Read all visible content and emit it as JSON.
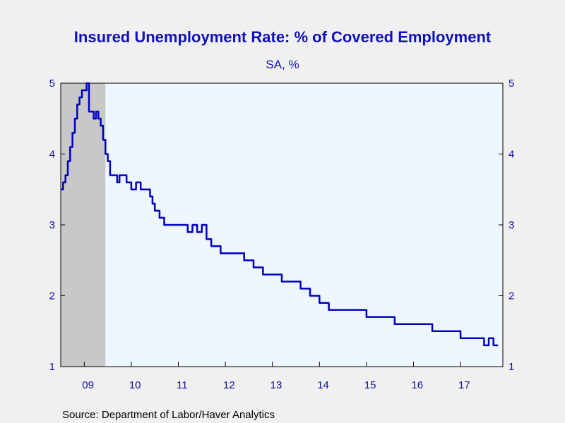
{
  "chart_data": {
    "type": "line",
    "title": "Insured Unemployment Rate: % of Covered Employment",
    "subtitle": "SA, %",
    "source": "Source:  Department of Labor/Haver Analytics",
    "xlabel": "",
    "ylabel": "",
    "ylim": [
      1,
      5
    ],
    "xlim": [
      2008.5,
      2017.9
    ],
    "y_ticks": [
      "1",
      "2",
      "3",
      "4",
      "5"
    ],
    "x_tick_labels": [
      "09",
      "10",
      "11",
      "12",
      "13",
      "14",
      "15",
      "16",
      "17"
    ],
    "recession_shading": [
      {
        "start": 2008.5,
        "end": 2009.45
      }
    ],
    "grid": false,
    "colors": {
      "line": "#0000c0",
      "plot_bg": "#eef6ff",
      "shade": "#c8c8c8",
      "text": "#1010c0"
    },
    "series": [
      {
        "x": [
          2008.5,
          2008.55,
          2008.6,
          2008.65,
          2008.7,
          2008.75,
          2008.8,
          2008.85,
          2008.9,
          2008.95,
          2009.0,
          2009.05,
          2009.1,
          2009.15,
          2009.2,
          2009.25,
          2009.3,
          2009.35,
          2009.4,
          2009.45,
          2009.5,
          2009.55,
          2009.6,
          2009.65,
          2009.7,
          2009.75,
          2009.8,
          2009.85,
          2009.9,
          2009.95,
          2010.0,
          2010.1,
          2010.2,
          2010.3,
          2010.4,
          2010.45,
          2010.5,
          2010.6,
          2010.7,
          2010.8,
          2010.9,
          2011.0,
          2011.1,
          2011.2,
          2011.3,
          2011.4,
          2011.5,
          2011.6,
          2011.7,
          2011.8,
          2011.9,
          2012.0,
          2012.2,
          2012.4,
          2012.6,
          2012.8,
          2012.9,
          2013.0,
          2013.2,
          2013.4,
          2013.6,
          2013.8,
          2014.0,
          2014.2,
          2014.4,
          2014.6,
          2014.8,
          2015.0,
          2015.2,
          2015.4,
          2015.6,
          2015.8,
          2016.0,
          2016.2,
          2016.4,
          2016.6,
          2016.8,
          2017.0,
          2017.1,
          2017.2,
          2017.3,
          2017.4,
          2017.5,
          2017.6,
          2017.7,
          2017.8
        ],
        "y": [
          3.5,
          3.6,
          3.7,
          3.9,
          4.1,
          4.3,
          4.5,
          4.7,
          4.8,
          4.9,
          4.9,
          5.0,
          4.6,
          4.6,
          4.5,
          4.6,
          4.5,
          4.4,
          4.2,
          4.0,
          3.9,
          3.7,
          3.7,
          3.7,
          3.6,
          3.7,
          3.7,
          3.7,
          3.6,
          3.6,
          3.5,
          3.6,
          3.5,
          3.5,
          3.4,
          3.3,
          3.2,
          3.1,
          3.0,
          3.0,
          3.0,
          3.0,
          3.0,
          2.9,
          3.0,
          2.9,
          3.0,
          2.8,
          2.7,
          2.7,
          2.6,
          2.6,
          2.6,
          2.5,
          2.4,
          2.3,
          2.3,
          2.3,
          2.2,
          2.2,
          2.1,
          2.0,
          1.9,
          1.8,
          1.8,
          1.8,
          1.8,
          1.7,
          1.7,
          1.7,
          1.6,
          1.6,
          1.6,
          1.6,
          1.5,
          1.5,
          1.5,
          1.4,
          1.4,
          1.4,
          1.4,
          1.4,
          1.3,
          1.4,
          1.3,
          1.3
        ]
      }
    ]
  }
}
